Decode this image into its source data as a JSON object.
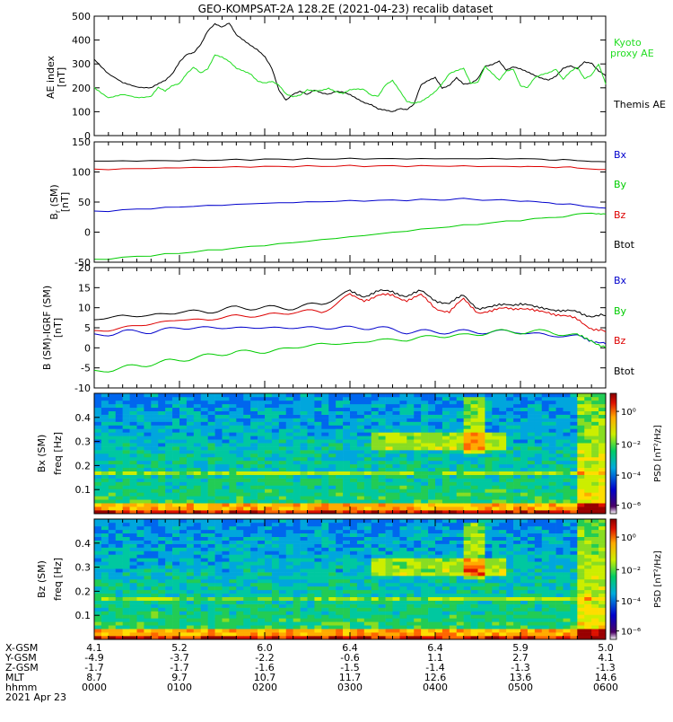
{
  "title": "GEO-KOMPSAT-2A 128.2E (2021-04-23) recalib dataset",
  "colors": {
    "black": "#000000",
    "green": "#00cc00",
    "blue": "#0000cc",
    "red": "#dd0000",
    "kyoto": "#22dd22"
  },
  "chart_data": [
    {
      "type": "line",
      "panel": "ae",
      "ylabel": "AE index [nT]",
      "ylim": [
        0,
        500
      ],
      "yticks": [
        0,
        100,
        200,
        300,
        400,
        500
      ],
      "xlim": [
        0,
        360
      ],
      "legend": [
        {
          "label": "Kyoto proxy AE",
          "color": "#22dd22"
        },
        {
          "label": "Themis AE",
          "color": "#000000"
        }
      ],
      "series": [
        {
          "name": "Themis AE",
          "color": "#000000",
          "x": [
            0,
            10,
            20,
            30,
            40,
            45,
            50,
            55,
            60,
            65,
            70,
            75,
            80,
            85,
            90,
            95,
            100,
            105,
            110,
            115,
            120,
            125,
            130,
            135,
            140,
            145,
            150,
            155,
            160,
            165,
            170,
            175,
            180,
            185,
            190,
            195,
            200,
            205,
            210,
            215,
            220,
            225,
            230,
            235,
            240,
            245,
            250,
            255,
            260,
            265,
            270,
            275,
            280,
            285,
            290,
            295,
            300,
            305,
            310,
            315,
            320,
            325,
            330,
            335,
            340,
            345,
            350,
            355,
            360
          ],
          "values": [
            320,
            260,
            220,
            205,
            200,
            215,
            230,
            260,
            310,
            340,
            345,
            380,
            440,
            470,
            455,
            470,
            420,
            400,
            380,
            360,
            330,
            280,
            190,
            150,
            175,
            185,
            170,
            190,
            180,
            175,
            185,
            180,
            170,
            155,
            140,
            130,
            110,
            105,
            100,
            115,
            110,
            130,
            210,
            230,
            245,
            200,
            210,
            240,
            215,
            220,
            240,
            290,
            295,
            310,
            275,
            290,
            280,
            265,
            250,
            240,
            235,
            250,
            280,
            290,
            280,
            310,
            305,
            270,
            250
          ]
        },
        {
          "name": "Kyoto proxy AE",
          "color": "#22dd22",
          "x": [
            0,
            10,
            20,
            30,
            40,
            45,
            50,
            55,
            60,
            65,
            70,
            75,
            80,
            85,
            90,
            95,
            100,
            105,
            110,
            115,
            120,
            125,
            130,
            135,
            140,
            145,
            150,
            155,
            160,
            165,
            170,
            175,
            180,
            185,
            190,
            195,
            200,
            205,
            210,
            215,
            220,
            225,
            230,
            235,
            240,
            245,
            250,
            255,
            260,
            265,
            270,
            275,
            280,
            285,
            290,
            295,
            300,
            305,
            310,
            315,
            320,
            325,
            330,
            335,
            340,
            345,
            350,
            355,
            360
          ],
          "values": [
            200,
            160,
            170,
            160,
            165,
            200,
            185,
            210,
            220,
            260,
            285,
            260,
            280,
            340,
            330,
            310,
            280,
            270,
            260,
            230,
            220,
            225,
            210,
            175,
            165,
            170,
            190,
            185,
            190,
            200,
            185,
            175,
            190,
            195,
            195,
            170,
            165,
            210,
            230,
            190,
            145,
            135,
            140,
            160,
            185,
            220,
            260,
            270,
            280,
            220,
            225,
            290,
            260,
            230,
            270,
            280,
            210,
            200,
            240,
            255,
            265,
            280,
            235,
            265,
            285,
            240,
            255,
            300,
            215
          ]
        }
      ]
    },
    {
      "type": "line",
      "panel": "bgsm",
      "ylabel": "B (SM) [nT]",
      "ylim": [
        -50,
        150
      ],
      "yticks": [
        -50,
        0,
        50,
        100,
        150
      ],
      "xlim": [
        0,
        360
      ],
      "legend": [
        {
          "label": "Bx",
          "color": "#0000cc"
        },
        {
          "label": "By",
          "color": "#00cc00"
        },
        {
          "label": "Bz",
          "color": "#dd0000"
        },
        {
          "label": "Btot",
          "color": "#000000"
        }
      ],
      "series": [
        {
          "name": "Btot",
          "color": "#000000",
          "x": [
            0,
            60,
            120,
            180,
            240,
            300,
            330,
            360
          ],
          "values": [
            118,
            119,
            121,
            122,
            122,
            122,
            120,
            117
          ]
        },
        {
          "name": "Bz",
          "color": "#dd0000",
          "x": [
            0,
            60,
            120,
            180,
            240,
            300,
            330,
            360
          ],
          "values": [
            104,
            107,
            109,
            110,
            110,
            109,
            108,
            104
          ]
        },
        {
          "name": "Bx",
          "color": "#0000cc",
          "x": [
            0,
            60,
            120,
            180,
            240,
            260,
            300,
            330,
            360
          ],
          "values": [
            34,
            42,
            48,
            52,
            54,
            55,
            52,
            47,
            40
          ]
        },
        {
          "name": "By",
          "color": "#00cc00",
          "x": [
            0,
            60,
            120,
            180,
            240,
            300,
            330,
            350,
            360
          ],
          "values": [
            -46,
            -35,
            -22,
            -8,
            7,
            20,
            26,
            32,
            30
          ]
        }
      ]
    },
    {
      "type": "line",
      "panel": "bdiff",
      "ylabel": "B (SM)-IGRF (SM) [nT]",
      "ylim": [
        -10,
        20
      ],
      "yticks": [
        -10,
        -5,
        0,
        5,
        10,
        15,
        20
      ],
      "xlim": [
        0,
        360
      ],
      "legend": [
        {
          "label": "Bx",
          "color": "#0000cc"
        },
        {
          "label": "By",
          "color": "#00cc00"
        },
        {
          "label": "Bz",
          "color": "#dd0000"
        },
        {
          "label": "Btot",
          "color": "#000000"
        }
      ],
      "series": [
        {
          "name": "Btot",
          "color": "#000000",
          "x": [
            0,
            20,
            40,
            60,
            80,
            100,
            120,
            140,
            160,
            180,
            190,
            200,
            210,
            220,
            230,
            240,
            250,
            260,
            270,
            280,
            290,
            300,
            310,
            320,
            330,
            340,
            350,
            360
          ],
          "values": [
            7,
            8,
            8,
            9,
            9,
            10,
            10,
            10,
            11,
            14,
            13,
            14,
            14,
            13,
            14,
            12,
            11,
            13,
            10,
            10,
            11,
            11,
            10,
            10,
            9,
            9,
            8,
            8
          ]
        },
        {
          "name": "Bz",
          "color": "#dd0000",
          "x": [
            0,
            20,
            40,
            60,
            80,
            100,
            120,
            140,
            160,
            180,
            190,
            200,
            210,
            220,
            230,
            240,
            250,
            260,
            270,
            280,
            290,
            300,
            310,
            320,
            330,
            340,
            350,
            360
          ],
          "values": [
            4,
            5,
            6,
            7,
            7,
            8,
            8,
            9,
            9,
            13,
            12,
            13,
            13,
            12,
            13,
            10,
            9,
            12,
            9,
            9,
            10,
            10,
            9,
            9,
            8,
            7,
            5,
            4
          ]
        },
        {
          "name": "Bx",
          "color": "#0000cc",
          "x": [
            0,
            20,
            40,
            60,
            80,
            100,
            120,
            140,
            160,
            180,
            200,
            220,
            240,
            260,
            280,
            300,
            320,
            340,
            350,
            360
          ],
          "values": [
            3,
            4,
            4,
            5,
            5,
            5,
            5,
            5,
            5,
            5,
            5,
            4,
            4,
            4,
            4,
            4,
            3,
            3,
            2,
            1
          ]
        },
        {
          "name": "By",
          "color": "#00cc00",
          "x": [
            0,
            20,
            40,
            60,
            80,
            100,
            120,
            140,
            160,
            180,
            200,
            220,
            240,
            260,
            280,
            300,
            320,
            340,
            350,
            360
          ],
          "values": [
            -6,
            -5,
            -4,
            -3,
            -2,
            -1,
            -1,
            0,
            1,
            1,
            2,
            2,
            3,
            3,
            4,
            4,
            4,
            3,
            2,
            0
          ]
        }
      ]
    },
    {
      "type": "heatmap",
      "panel": "spec-bx",
      "ylabel": "Bx (SM) freq [Hz]",
      "ylim": [
        0,
        0.5
      ],
      "yticks": [
        0.1,
        0.2,
        0.3,
        0.4
      ],
      "colorbar_label": "PSD [nT^2/Hz]",
      "colorbar_ticks": [
        "10^0",
        "10^-2",
        "10^-4",
        "10^-6"
      ]
    },
    {
      "type": "heatmap",
      "panel": "spec-bz",
      "ylabel": "Bz (SM) freq [Hz]",
      "ylim": [
        0,
        0.5
      ],
      "yticks": [
        0.1,
        0.2,
        0.3,
        0.4
      ],
      "colorbar_label": "PSD [nT^2/Hz]",
      "colorbar_ticks": [
        "10^0",
        "10^-2",
        "10^-4",
        "10^-6"
      ]
    }
  ],
  "axes": {
    "ae": {
      "ylabel_main": "AE index",
      "ylabel_unit": "[nT]",
      "ticks": [
        "0",
        "100",
        "200",
        "300",
        "400",
        "500"
      ],
      "legend1": "Kyoto",
      "legend2": "proxy AE",
      "legend3": "Themis AE"
    },
    "bgsm": {
      "ylabel_main": "B",
      "ylabel_sub": "r",
      "ylabel_tail": " (SM)",
      "ylabel_unit": "[nT]",
      "ticks": [
        "-50",
        "0",
        "50",
        "100",
        "150"
      ],
      "legend": [
        "Bx",
        "By",
        "Bz",
        "Btot"
      ]
    },
    "bdiff": {
      "ylabel_main": "B (SM)-IGRF (SM)",
      "ylabel_unit": "[nT]",
      "ticks": [
        "-10",
        "-5",
        "0",
        "5",
        "10",
        "15",
        "20"
      ],
      "legend": [
        "Bx",
        "By",
        "Bz",
        "Btot"
      ]
    },
    "spec_bx": {
      "ylabel1": "Bx (SM)",
      "ylabel2": "freq [Hz]",
      "ticks": [
        "0.1",
        "0.2",
        "0.3",
        "0.4"
      ],
      "cbar": "PSD [nT²/Hz]",
      "cbar_ticks": [
        "10⁰",
        "10⁻²",
        "10⁻⁴",
        "10⁻⁶"
      ]
    },
    "spec_bz": {
      "ylabel1": "Bz (SM)",
      "ylabel2": "freq [Hz]",
      "ticks": [
        "0.1",
        "0.2",
        "0.3",
        "0.4"
      ],
      "cbar": "PSD [nT²/Hz]",
      "cbar_ticks": [
        "10⁰",
        "10⁻²",
        "10⁻⁴",
        "10⁻⁶"
      ]
    }
  },
  "ephemeris": {
    "row_labels": [
      "X-GSM",
      "Y-GSM",
      "Z-GSM",
      "MLT",
      "hhmm"
    ],
    "date": "2021 Apr 23",
    "columns": [
      {
        "x": "4.1",
        "y": "-4.9",
        "z": "-1.7",
        "mlt": "8.7",
        "hhmm": "0000"
      },
      {
        "x": "5.2",
        "y": "-3.7",
        "z": "-1.7",
        "mlt": "9.7",
        "hhmm": "0100"
      },
      {
        "x": "6.0",
        "y": "-2.2",
        "z": "-1.6",
        "mlt": "10.7",
        "hhmm": "0200"
      },
      {
        "x": "6.4",
        "y": "-0.6",
        "z": "-1.5",
        "mlt": "11.7",
        "hhmm": "0300"
      },
      {
        "x": "6.4",
        "y": "1.1",
        "z": "-1.4",
        "mlt": "12.6",
        "hhmm": "0400"
      },
      {
        "x": "5.9",
        "y": "2.7",
        "z": "-1.3",
        "mlt": "13.6",
        "hhmm": "0500"
      },
      {
        "x": "5.0",
        "y": "4.1",
        "z": "-1.3",
        "mlt": "14.6",
        "hhmm": "0600"
      }
    ]
  }
}
